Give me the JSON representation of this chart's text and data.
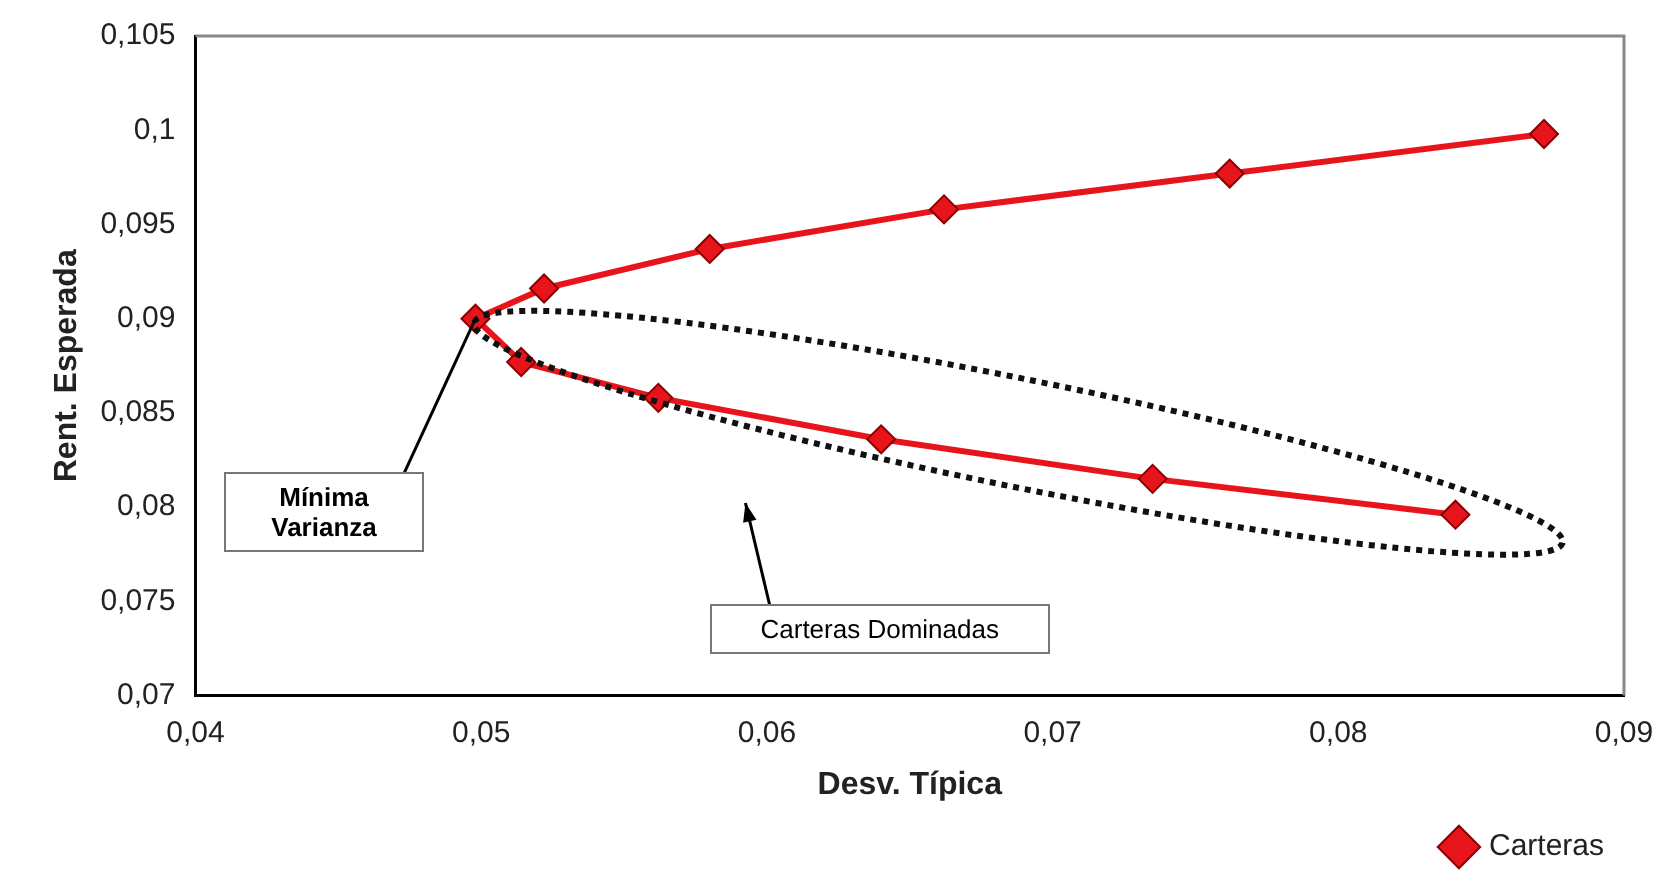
{
  "chart_data": {
    "type": "line",
    "xlabel": "Desv. Típica",
    "ylabel": "Rent. Esperada",
    "xlim": [
      0.04,
      0.09
    ],
    "xticks": [
      {
        "value": 0.04,
        "label": "0,04"
      },
      {
        "value": 0.05,
        "label": "0,05"
      },
      {
        "value": 0.06,
        "label": "0,06"
      },
      {
        "value": 0.07,
        "label": "0,07"
      },
      {
        "value": 0.08,
        "label": "0,08"
      },
      {
        "value": 0.09,
        "label": "0,09"
      }
    ],
    "ylim": [
      0.07,
      0.105
    ],
    "yticks": [
      {
        "value": 0.07,
        "label": "0,07"
      },
      {
        "value": 0.075,
        "label": "0,075"
      },
      {
        "value": 0.08,
        "label": "0,08"
      },
      {
        "value": 0.085,
        "label": "0,085"
      },
      {
        "value": 0.09,
        "label": "0,09"
      },
      {
        "value": 0.095,
        "label": "0,095"
      },
      {
        "value": 0.1,
        "label": "0,1"
      },
      {
        "value": 0.105,
        "label": "0,105"
      }
    ],
    "series": [
      {
        "name": "Carteras",
        "color": "#e8141b",
        "x": [
          0.0872,
          0.0762,
          0.0662,
          0.058,
          0.0522,
          0.0498,
          0.0514,
          0.0562,
          0.064,
          0.0735,
          0.0841
        ],
        "values": [
          0.0998,
          0.0977,
          0.0958,
          0.0937,
          0.0916,
          0.09,
          0.0877,
          0.0858,
          0.0836,
          0.0815,
          0.0796
        ]
      }
    ],
    "marker": "diamond",
    "line_style": "solid",
    "grid": false,
    "legend": "bottom right",
    "annotations": [
      {
        "text": "Mínima Varianza",
        "x": 0.0498,
        "y": 0.09
      },
      "Carteras Dominadas"
    ]
  }
}
